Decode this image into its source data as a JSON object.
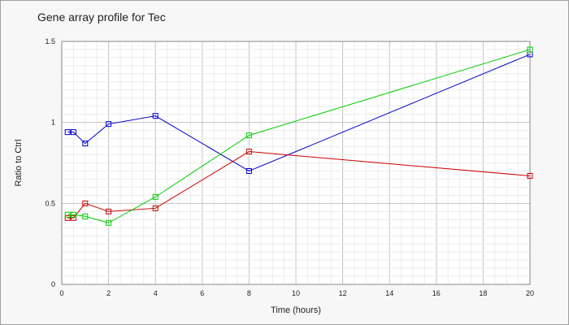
{
  "chart_data": {
    "type": "line",
    "title": "Gene array profile for Tec",
    "xlabel": "Time (hours)",
    "ylabel": "Ratio to Ctrl",
    "xlim": [
      0,
      20
    ],
    "ylim": [
      0,
      1.5
    ],
    "x_ticks": [
      "0",
      "2",
      "4",
      "6",
      "8",
      "10",
      "12",
      "14",
      "16",
      "18",
      "20"
    ],
    "y_ticks": [
      "0",
      "0.5",
      "1",
      "1.5"
    ],
    "grid": true,
    "x": [
      0.25,
      0.5,
      1,
      2,
      4,
      8,
      20
    ],
    "series": [
      {
        "color": "#0000cc",
        "values": [
          0.94,
          0.94,
          0.87,
          0.99,
          1.04,
          0.7,
          1.42
        ]
      },
      {
        "color": "#cc0000",
        "values": [
          0.41,
          0.41,
          0.5,
          0.45,
          0.47,
          0.82,
          0.67
        ]
      },
      {
        "color": "#00cc00",
        "values": [
          0.43,
          0.43,
          0.42,
          0.38,
          0.54,
          0.92,
          1.45
        ]
      }
    ]
  }
}
